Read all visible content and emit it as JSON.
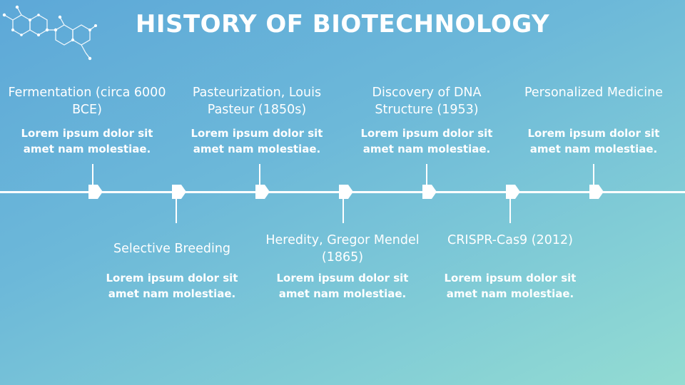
{
  "title": "HISTORY OF BIOTECHNOLOGY",
  "colors": {
    "text": "#ffffff",
    "background_start": "#5da8d8",
    "background_end": "#93dcd2"
  },
  "icons": {
    "decoration": "molecule-icon",
    "marker": "arrow-marker-icon"
  },
  "events": [
    {
      "heading": "Fermentation (circa 6000 BCE)",
      "description": "Lorem ipsum dolor sit amet nam molestiae.",
      "side": "top"
    },
    {
      "heading": "Selective Breeding",
      "description": "Lorem ipsum dolor sit amet nam molestiae.",
      "side": "bottom"
    },
    {
      "heading": "Pasteurization, Louis Pasteur (1850s)",
      "description": "Lorem ipsum dolor sit amet nam molestiae.",
      "side": "top"
    },
    {
      "heading": "Heredity, Gregor Mendel (1865)",
      "description": "Lorem ipsum dolor sit amet nam molestiae.",
      "side": "bottom"
    },
    {
      "heading": "Discovery of DNA Structure (1953)",
      "description": "Lorem ipsum dolor sit amet nam molestiae.",
      "side": "top"
    },
    {
      "heading": "CRISPR-Cas9 (2012)",
      "description": "Lorem ipsum dolor sit amet nam molestiae.",
      "side": "bottom"
    },
    {
      "heading": "Personalized Medicine",
      "description": "Lorem ipsum dolor sit amet nam molestiae.",
      "side": "top"
    }
  ]
}
